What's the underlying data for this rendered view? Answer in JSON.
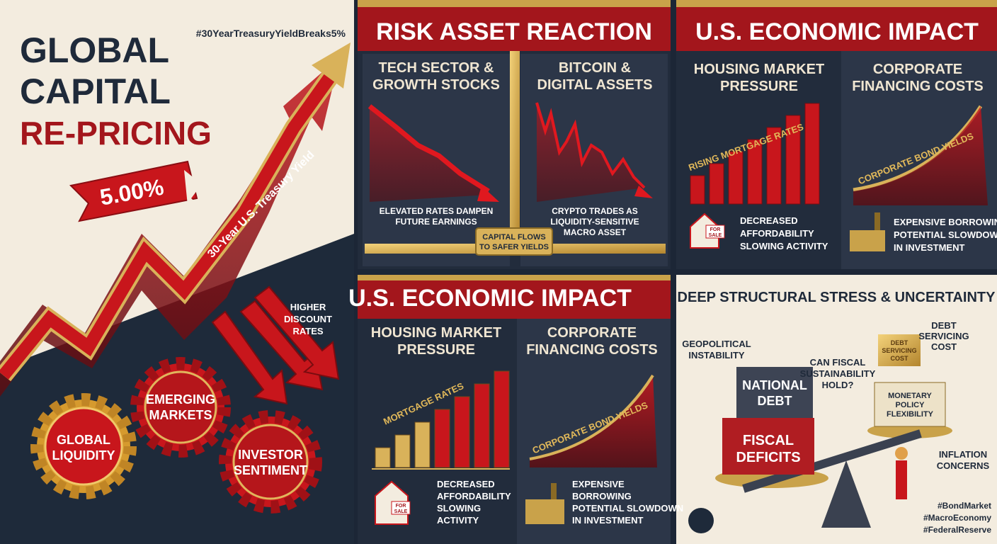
{
  "panel_1": {
    "title": [
      "GLOBAL",
      "CAPITAL",
      "RE-PRICING"
    ],
    "hashtag": "#30YearTreasuryYieldBreaks5%",
    "yield_badge": "5.00%",
    "arrow_label": "30-Year U.S. Treasury Yield",
    "callout": [
      "HIGHER",
      "DISCOUNT",
      "RATES"
    ],
    "gears": [
      {
        "label": [
          "EMERGING",
          "MARKETS"
        ]
      },
      {
        "label": [
          "GLOBAL",
          "LIQUIDITY"
        ]
      },
      {
        "label": [
          "INVESTOR",
          "SENTIMENT"
        ]
      }
    ]
  },
  "panel_2": {
    "title": "RISK ASSET REACTION",
    "left": {
      "heading": [
        "TECH SECTOR &",
        "GROWTH STOCKS"
      ],
      "caption": [
        "ELEVATED RATES DAMPEN",
        "FUTURE EARNINGS"
      ]
    },
    "right": {
      "heading": [
        "BITCOIN &",
        "DIGITAL ASSETS"
      ],
      "caption": [
        "CRYPTO TRADES AS",
        "LIQUIDITY-SENSITIVE",
        "MACRO ASSET"
      ]
    },
    "pipe_label": [
      "CAPITAL FLOWS",
      "TO SAFER YIELDS"
    ]
  },
  "panel_3": {
    "title": "U.S. ECONOMIC IMPACT",
    "housing": {
      "heading": [
        "HOUSING MARKET",
        "PRESSURE"
      ],
      "chart_label": "RISING MORTGAGE RATES",
      "sign": [
        "FOR",
        "SALE"
      ],
      "effects": [
        "DECREASED",
        "AFFORDABILITY",
        "SLOWING ACTIVITY"
      ]
    },
    "corporate": {
      "heading": [
        "CORPORATE",
        "FINANCING COSTS"
      ],
      "chart_label": "CORPORATE BOND YIELDS",
      "effects": [
        "EXPENSIVE BORROWING",
        "POTENTIAL SLOWDOWN",
        "IN INVESTMENT"
      ]
    }
  },
  "panel_4": {
    "title": "U.S. ECONOMIC IMPACT",
    "housing": {
      "heading": [
        "HOUSING MARKET",
        "PRESSURE"
      ],
      "chart_label": "MORTGAGE RATES",
      "sign": [
        "FOR",
        "SALE"
      ],
      "effects": [
        "DECREASED",
        "AFFORDABILITY",
        "SLOWING",
        "ACTIVITY"
      ]
    },
    "corporate": {
      "heading": [
        "CORPORATE",
        "FINANCING COSTS"
      ],
      "chart_label": "CORPORATE BOND YIELDS",
      "effects": [
        "EXPENSIVE",
        "BORROWING",
        "POTENTIAL SLOWDOWN",
        "IN INVESTMENT"
      ]
    }
  },
  "panel_5": {
    "title": "DEEP STRUCTURAL STRESS & UNCERTAINTY",
    "geopolitical": [
      "GEOPOLITICAL",
      "INSTABILITY"
    ],
    "national_debt": [
      "NATIONAL",
      "DEBT"
    ],
    "fiscal_deficits": [
      "FISCAL",
      "DEFICITS"
    ],
    "question": [
      "CAN FISCAL",
      "SUSTAINABILITY",
      "HOLD?"
    ],
    "debt_servicing_label": [
      "DEBT",
      "SERVICING",
      "COST"
    ],
    "debt_servicing_box": [
      "DEBT",
      "SERVICING",
      "COST"
    ],
    "monetary_policy": [
      "MONETARY",
      "POLICY",
      "FLEXIBILITY"
    ],
    "inflation": [
      "INFLATION",
      "CONCERNS"
    ],
    "hashtags": [
      "#BondMarket",
      "#MacroEconomy",
      "#FederalReserve"
    ]
  }
}
